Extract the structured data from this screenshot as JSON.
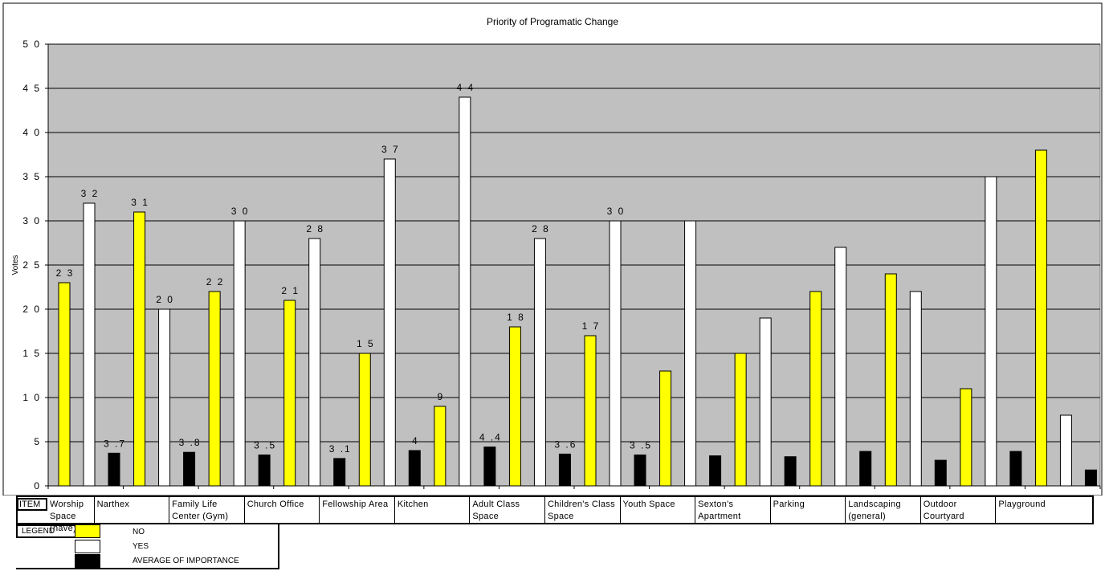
{
  "chart_data": {
    "type": "bar",
    "title": "Priority of Programatic Change",
    "ylabel": "Votes",
    "xlabel": "",
    "ylim": [
      0,
      50
    ],
    "yticks": [
      0,
      5,
      10,
      15,
      20,
      25,
      30,
      35,
      40,
      45,
      50
    ],
    "ytick_labels": [
      "0",
      "5",
      "1 0",
      "1 5",
      "2 0",
      "2 5",
      "3 0",
      "3 5",
      "4 0",
      "4 5",
      "5 0"
    ],
    "grid": true,
    "categories": [
      "Worship Space (nave)",
      "Narthex",
      "Family Life Center (Gym)",
      "Church Office",
      "Fellowship Area",
      "Kitchen",
      "Adult Class Space",
      "Children's Class Space",
      "Youth Space",
      "Sexton's Apartment",
      "Parking",
      "Landscaping (general)",
      "Outdoor Courtyard",
      "Playground"
    ],
    "series": [
      {
        "name": "NO",
        "color": "#ffff00",
        "values": [
          23,
          31,
          22,
          21,
          15,
          9,
          18,
          17,
          13,
          15,
          22,
          24,
          11,
          38
        ],
        "labels": [
          "2 3",
          "3 1",
          "2 2",
          "2 1",
          "1 5",
          "9",
          "1 8",
          "1 7",
          "",
          "",
          "",
          "",
          "",
          ""
        ]
      },
      {
        "name": "YES",
        "color": "#ffffff",
        "values": [
          32,
          20,
          30,
          28,
          37,
          44,
          28,
          30,
          30,
          19,
          27,
          22,
          35,
          8
        ],
        "labels": [
          "3 2",
          "2 0",
          "3 0",
          "2 8",
          "3 7",
          "4 4",
          "2 8",
          "3 0",
          "",
          "",
          "",
          "",
          "",
          ""
        ]
      },
      {
        "name": "AVERAGE OF IMPORTANCE",
        "color": "#000000",
        "values": [
          3.7,
          3.8,
          3.5,
          3.1,
          4,
          4.4,
          3.6,
          3.5,
          3.4,
          3.3,
          3.9,
          2.9,
          3.9,
          1.8
        ],
        "labels": [
          "3 .7",
          "3 .8",
          "3 .5",
          "3 .1",
          "4",
          "4 .4",
          "3 .6",
          "3 .5",
          "",
          "",
          "",
          "",
          "",
          ""
        ]
      }
    ],
    "legend_placement": "bottom-left"
  },
  "item_row": {
    "header": "ITEM",
    "cells": [
      "Worship Space (nave)",
      "Narthex",
      "Family Life Center (Gym)",
      "Church Office",
      "Fellowship Area",
      "Kitchen",
      "Adult Class Space",
      "Children's Class Space",
      "Youth Space",
      "Sexton's Apartment",
      "Parking",
      "Landscaping (general)",
      "Outdoor Courtyard",
      "Playground"
    ]
  },
  "legend": {
    "header": "LEGEND",
    "entries": [
      {
        "label": "NO",
        "color": "#ffff00"
      },
      {
        "label": "YES",
        "color": "#ffffff"
      },
      {
        "label": "AVERAGE OF IMPORTANCE",
        "color": "#000000"
      }
    ]
  },
  "colors": {
    "plot_background": "#c0c0c0",
    "grid": "#000000"
  }
}
